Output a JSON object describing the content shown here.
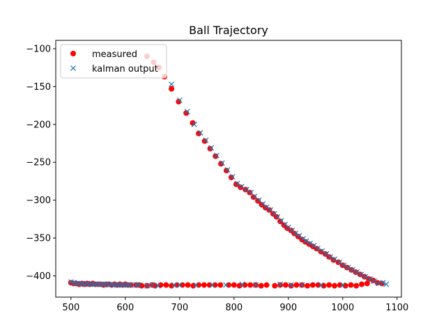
{
  "chart_data": {
    "type": "scatter",
    "title": "Ball Trajectory",
    "xlabel": "",
    "ylabel": "",
    "xlim": [
      472,
      1108
    ],
    "ylim": [
      -428,
      -89
    ],
    "xticks": [
      500,
      600,
      700,
      800,
      900,
      1000,
      1100
    ],
    "yticks": [
      -400,
      -350,
      -300,
      -250,
      -200,
      -150,
      -100
    ],
    "grid": false,
    "legend_position": "top-left",
    "series": [
      {
        "name": "measured",
        "marker": "circle",
        "color": "#ff0000",
        "points": [
          [
            500,
            -409
          ],
          [
            505,
            -410
          ],
          [
            510,
            -410
          ],
          [
            515,
            -411
          ],
          [
            520,
            -410
          ],
          [
            525,
            -411
          ],
          [
            530,
            -410
          ],
          [
            535,
            -411
          ],
          [
            540,
            -410
          ],
          [
            545,
            -411
          ],
          [
            550,
            -411
          ],
          [
            555,
            -411
          ],
          [
            560,
            -412
          ],
          [
            565,
            -411
          ],
          [
            570,
            -411
          ],
          [
            575,
            -412
          ],
          [
            580,
            -411
          ],
          [
            585,
            -412
          ],
          [
            590,
            -411
          ],
          [
            595,
            -412
          ],
          [
            600,
            -411
          ],
          [
            605,
            -412
          ],
          [
            610,
            -412
          ],
          [
            620,
            -412
          ],
          [
            625,
            -412
          ],
          [
            630,
            -413
          ],
          [
            640,
            -413
          ],
          [
            650,
            -412
          ],
          [
            655,
            -413
          ],
          [
            665,
            -412
          ],
          [
            675,
            -412
          ],
          [
            685,
            -413
          ],
          [
            695,
            -412
          ],
          [
            705,
            -412
          ],
          [
            715,
            -412
          ],
          [
            725,
            -413
          ],
          [
            735,
            -412
          ],
          [
            745,
            -412
          ],
          [
            755,
            -412
          ],
          [
            765,
            -412
          ],
          [
            775,
            -412
          ],
          [
            790,
            -412
          ],
          [
            800,
            -412
          ],
          [
            810,
            -413
          ],
          [
            820,
            -412
          ],
          [
            830,
            -412
          ],
          [
            840,
            -412
          ],
          [
            850,
            -413
          ],
          [
            860,
            -412
          ],
          [
            875,
            -413
          ],
          [
            885,
            -412
          ],
          [
            895,
            -412
          ],
          [
            905,
            -413
          ],
          [
            915,
            -412
          ],
          [
            925,
            -412
          ],
          [
            935,
            -413
          ],
          [
            945,
            -412
          ],
          [
            955,
            -412
          ],
          [
            965,
            -413
          ],
          [
            975,
            -412
          ],
          [
            985,
            -413
          ],
          [
            995,
            -412
          ],
          [
            1005,
            -413
          ],
          [
            1015,
            -412
          ],
          [
            1025,
            -413
          ],
          [
            1035,
            -411
          ],
          [
            1045,
            -410
          ],
          [
            640,
            -110
          ],
          [
            652,
            -118
          ],
          [
            662,
            -125
          ],
          [
            672,
            -137
          ],
          [
            685,
            -153
          ],
          [
            698,
            -170
          ],
          [
            712,
            -185
          ],
          [
            724,
            -198
          ],
          [
            735,
            -212
          ],
          [
            746,
            -222
          ],
          [
            756,
            -232
          ],
          [
            766,
            -242
          ],
          [
            776,
            -252
          ],
          [
            786,
            -261
          ],
          [
            795,
            -270
          ],
          [
            804,
            -279
          ],
          [
            812,
            -283
          ],
          [
            821,
            -286
          ],
          [
            829,
            -290
          ],
          [
            836,
            -296
          ],
          [
            844,
            -301
          ],
          [
            851,
            -306
          ],
          [
            858,
            -310
          ],
          [
            865,
            -313
          ],
          [
            872,
            -318
          ],
          [
            878,
            -322
          ],
          [
            885,
            -328
          ],
          [
            892,
            -333
          ],
          [
            898,
            -337
          ],
          [
            905,
            -340
          ],
          [
            911,
            -344
          ],
          [
            918,
            -348
          ],
          [
            925,
            -352
          ],
          [
            931,
            -355
          ],
          [
            938,
            -358
          ],
          [
            945,
            -361
          ],
          [
            952,
            -364
          ],
          [
            960,
            -368
          ],
          [
            968,
            -371
          ],
          [
            975,
            -375
          ],
          [
            983,
            -379
          ],
          [
            992,
            -382
          ],
          [
            1000,
            -386
          ],
          [
            1008,
            -389
          ],
          [
            1016,
            -392
          ],
          [
            1024,
            -395
          ],
          [
            1032,
            -398
          ],
          [
            1040,
            -401
          ],
          [
            1048,
            -404
          ],
          [
            1056,
            -406
          ],
          [
            1064,
            -409
          ],
          [
            1072,
            -410
          ]
        ]
      },
      {
        "name": "kalman output",
        "marker": "x",
        "color": "#1f77b4",
        "points": [
          [
            500,
            -408
          ],
          [
            505,
            -409
          ],
          [
            510,
            -410
          ],
          [
            515,
            -410
          ],
          [
            520,
            -410
          ],
          [
            525,
            -411
          ],
          [
            530,
            -410
          ],
          [
            535,
            -411
          ],
          [
            540,
            -411
          ],
          [
            545,
            -411
          ],
          [
            550,
            -411
          ],
          [
            555,
            -411
          ],
          [
            560,
            -411
          ],
          [
            565,
            -411
          ],
          [
            570,
            -412
          ],
          [
            575,
            -411
          ],
          [
            580,
            -412
          ],
          [
            585,
            -412
          ],
          [
            590,
            -412
          ],
          [
            595,
            -412
          ],
          [
            600,
            -412
          ],
          [
            605,
            -412
          ],
          [
            610,
            -412
          ],
          [
            620,
            -412
          ],
          [
            625,
            -412
          ],
          [
            640,
            -413
          ],
          [
            650,
            -412
          ],
          [
            660,
            -413
          ],
          [
            690,
            -412
          ],
          [
            700,
            -412
          ],
          [
            730,
            -412
          ],
          [
            760,
            -412
          ],
          [
            785,
            -412
          ],
          [
            815,
            -411
          ],
          [
            840,
            -412
          ],
          [
            885,
            -411
          ],
          [
            905,
            -412
          ],
          [
            925,
            -412
          ],
          [
            960,
            -412
          ],
          [
            1000,
            -412
          ],
          [
            685,
            -147
          ],
          [
            700,
            -168
          ],
          [
            714,
            -183
          ],
          [
            727,
            -200
          ],
          [
            738,
            -211
          ],
          [
            748,
            -221
          ],
          [
            758,
            -231
          ],
          [
            768,
            -241
          ],
          [
            778,
            -251
          ],
          [
            788,
            -260
          ],
          [
            797,
            -269
          ],
          [
            806,
            -278
          ],
          [
            814,
            -282
          ],
          [
            823,
            -286
          ],
          [
            831,
            -290
          ],
          [
            838,
            -295
          ],
          [
            846,
            -300
          ],
          [
            853,
            -305
          ],
          [
            860,
            -309
          ],
          [
            867,
            -313
          ],
          [
            874,
            -318
          ],
          [
            880,
            -322
          ],
          [
            887,
            -327
          ],
          [
            894,
            -332
          ],
          [
            900,
            -336
          ],
          [
            907,
            -340
          ],
          [
            913,
            -344
          ],
          [
            920,
            -347
          ],
          [
            927,
            -351
          ],
          [
            933,
            -354
          ],
          [
            940,
            -357
          ],
          [
            947,
            -360
          ],
          [
            954,
            -364
          ],
          [
            962,
            -367
          ],
          [
            970,
            -371
          ],
          [
            977,
            -375
          ],
          [
            985,
            -378
          ],
          [
            994,
            -382
          ],
          [
            1002,
            -386
          ],
          [
            1010,
            -389
          ],
          [
            1018,
            -392
          ],
          [
            1026,
            -395
          ],
          [
            1034,
            -398
          ],
          [
            1042,
            -401
          ],
          [
            1050,
            -404
          ],
          [
            1058,
            -407
          ],
          [
            1066,
            -410
          ],
          [
            1074,
            -409
          ],
          [
            1080,
            -411
          ]
        ]
      }
    ]
  }
}
